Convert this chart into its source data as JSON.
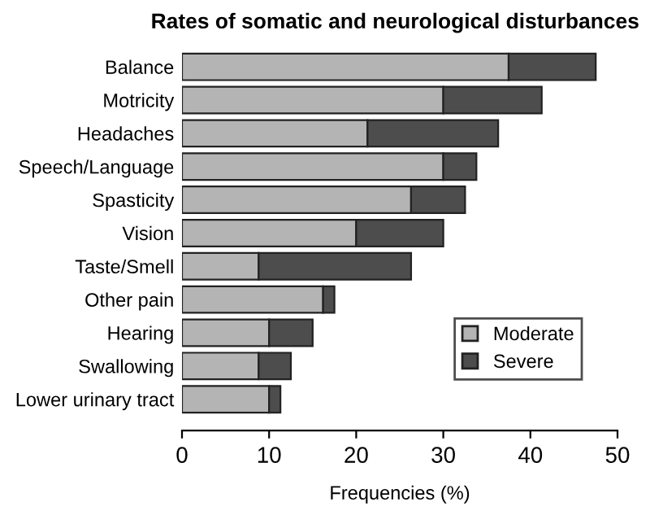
{
  "chart_data": {
    "type": "bar",
    "orientation": "horizontal",
    "stacked": true,
    "title": "Rates of somatic and neurological disturbances",
    "xlabel": "Frequencies (%)",
    "categories": [
      "Balance",
      "Motricity",
      "Headaches",
      "Speech/Language",
      "Spasticity",
      "Vision",
      "Taste/Smell",
      "Other pain",
      "Hearing",
      "Swallowing",
      "Lower urinary tract"
    ],
    "series": [
      {
        "name": "Moderate",
        "color": "#b4b4b4",
        "values": [
          37.5,
          30,
          21.3,
          30,
          26.3,
          20,
          8.8,
          16.2,
          10,
          8.8,
          10
        ]
      },
      {
        "name": "Severe",
        "color": "#4d4d4d",
        "values": [
          10,
          11.3,
          15,
          3.8,
          6.2,
          10,
          17.5,
          1.3,
          5,
          3.7,
          1.3
        ]
      }
    ],
    "xlim": [
      0,
      50
    ],
    "xticks": [
      0,
      10,
      20,
      30,
      40,
      50
    ],
    "legend": "bottom right",
    "grid": false
  }
}
